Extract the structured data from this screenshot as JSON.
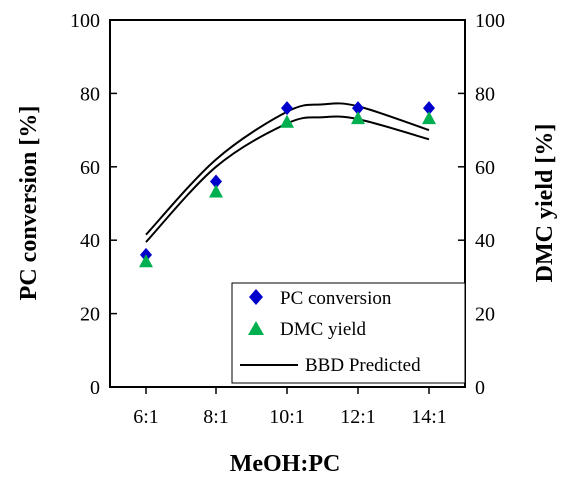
{
  "chart_data": {
    "type": "scatter",
    "categories": [
      "6:1",
      "8:1",
      "10:1",
      "12:1",
      "14:1"
    ],
    "xlabel": "MeOH:PC",
    "ylabel": "PC conversion [%]",
    "y2label": "DMC yield [%]",
    "ylim": [
      0,
      100
    ],
    "yticks": [
      0,
      20,
      40,
      60,
      80,
      100
    ],
    "y2lim": [
      0,
      100
    ],
    "y2ticks": [
      0,
      20,
      40,
      60,
      80,
      100
    ],
    "grid": false,
    "legend_position": "bottom-right",
    "series": [
      {
        "name": "PC conversion",
        "marker": "diamond",
        "color": "#0000cc",
        "values": [
          36,
          56,
          76,
          76,
          76
        ]
      },
      {
        "name": "DMC yield",
        "marker": "triangle",
        "color": "#00b050",
        "values": [
          34,
          53,
          72,
          73,
          73
        ]
      }
    ],
    "fit": {
      "name": "BBD Predicted",
      "color": "#000000",
      "curves": [
        {
          "points": [
            [
              0,
              41.5
            ],
            [
              1,
              62
            ],
            [
              2,
              75
            ],
            [
              2.5,
              77
            ],
            [
              3,
              76.5
            ],
            [
              4,
              70
            ]
          ]
        },
        {
          "points": [
            [
              0,
              39.5
            ],
            [
              1,
              60
            ],
            [
              2,
              71.8
            ],
            [
              2.5,
              73.5
            ],
            [
              3,
              73
            ],
            [
              4,
              67.5
            ]
          ]
        }
      ]
    }
  }
}
